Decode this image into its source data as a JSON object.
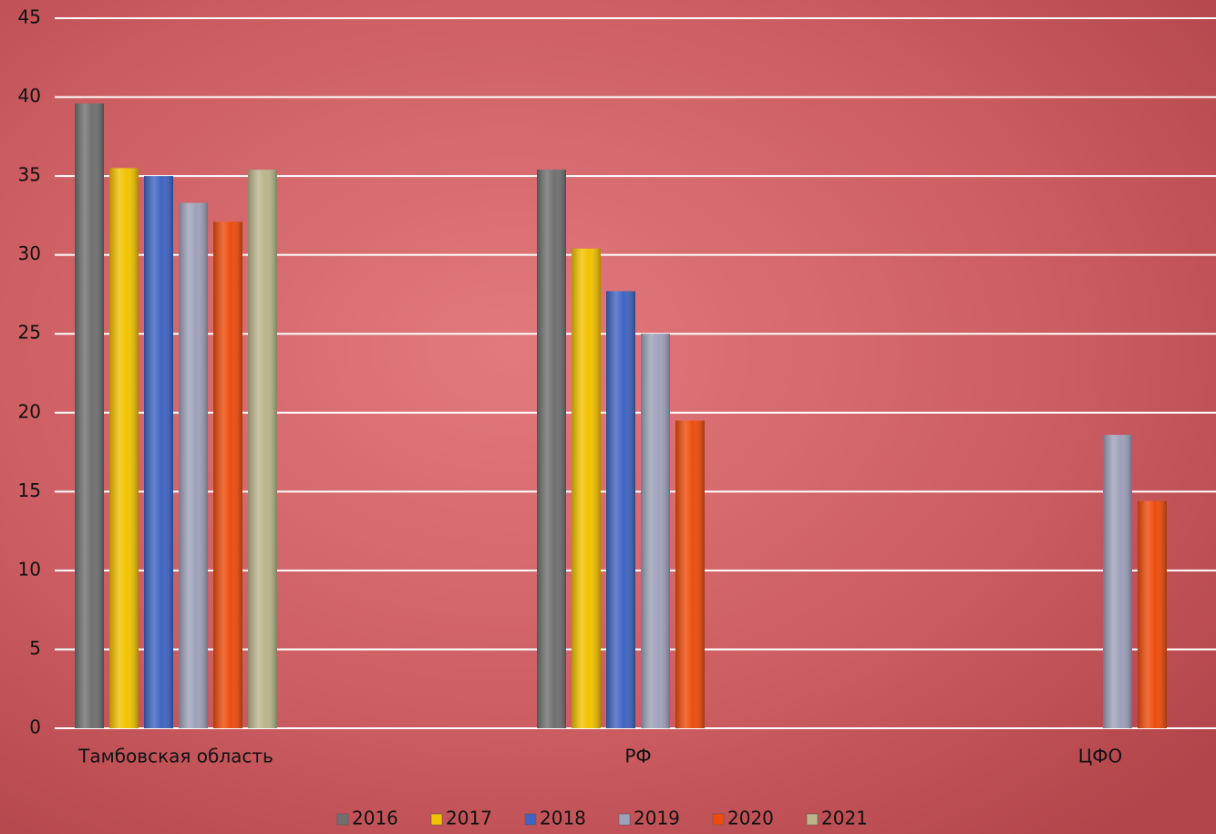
{
  "chart_data": {
    "type": "bar",
    "categories": [
      "Тамбовская область",
      "РФ",
      "ЦФО"
    ],
    "series": [
      {
        "name": "2016",
        "color": "#707070",
        "values": [
          39.6,
          35.4,
          null
        ]
      },
      {
        "name": "2017",
        "color": "#f2c200",
        "values": [
          35.5,
          30.4,
          null
        ]
      },
      {
        "name": "2018",
        "color": "#3f64c2",
        "values": [
          35.0,
          27.7,
          null
        ]
      },
      {
        "name": "2019",
        "color": "#9ea1b9",
        "values": [
          33.3,
          25.0,
          18.6
        ]
      },
      {
        "name": "2020",
        "color": "#ee4c0c",
        "values": [
          32.1,
          19.5,
          14.4
        ]
      },
      {
        "name": "2021",
        "color": "#bab58b",
        "values": [
          35.4,
          null,
          null
        ]
      }
    ],
    "ylim": [
      0,
      45
    ],
    "yticks": [
      0,
      5,
      10,
      15,
      20,
      25,
      30,
      35,
      40,
      45
    ],
    "grid": true,
    "legend": "bottom"
  }
}
